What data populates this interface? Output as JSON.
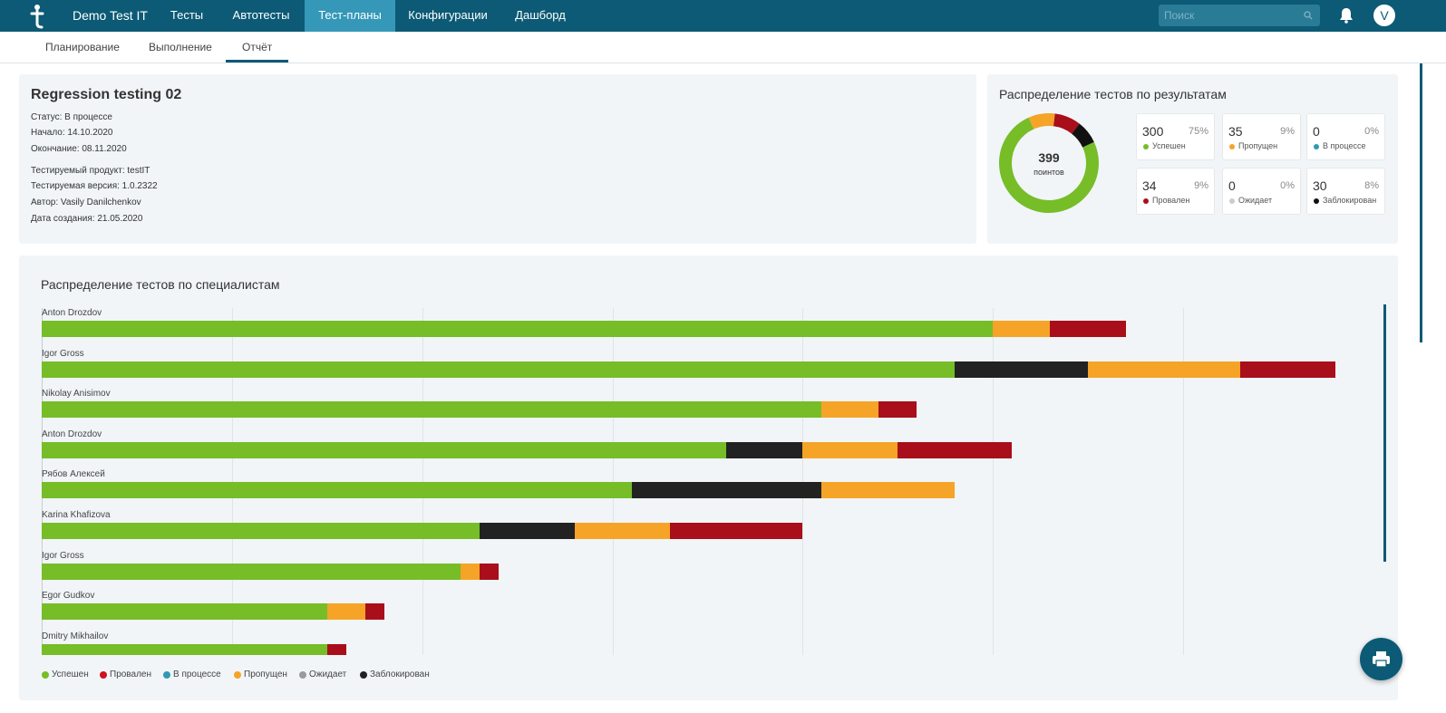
{
  "app": {
    "title": "Demo Test IT",
    "logo_icon": "testit-logo-icon"
  },
  "nav": {
    "tabs": [
      {
        "label": "Тесты",
        "active": false
      },
      {
        "label": "Автотесты",
        "active": false
      },
      {
        "label": "Тест-планы",
        "active": true
      },
      {
        "label": "Конфигурации",
        "active": false
      },
      {
        "label": "Дашборд",
        "active": false
      }
    ],
    "search_placeholder": "Поиск",
    "avatar_initial": "V"
  },
  "subnav": {
    "tabs": [
      {
        "label": "Планирование",
        "active": false
      },
      {
        "label": "Выполнение",
        "active": false
      },
      {
        "label": "Отчёт",
        "active": true
      }
    ]
  },
  "plan": {
    "title": "Regression testing 02",
    "status": "Статус: В процессе",
    "start": "Начало: 14.10.2020",
    "end": "Окончание: 08.11.2020",
    "product": "Тестируемый продукт: testIT",
    "version": "Тестируемая версия: 1.0.2322",
    "author": "Автор: Vasily Danilchenkov",
    "created": "Дата создания: 21.05.2020"
  },
  "distribution": {
    "title": "Распределение тестов по результатам",
    "total": "399",
    "total_unit": "поинтов",
    "stats": [
      {
        "count": "300",
        "pct": "75%",
        "label": "Успешен",
        "color": "#76bd28"
      },
      {
        "count": "35",
        "pct": "9%",
        "label": "Пропущен",
        "color": "#f5a428"
      },
      {
        "count": "0",
        "pct": "0%",
        "label": "В процессе",
        "color": "#3098b3"
      },
      {
        "count": "34",
        "pct": "9%",
        "label": "Провален",
        "color": "#a90e1b"
      },
      {
        "count": "0",
        "pct": "0%",
        "label": "Ожидает",
        "color": "#cccccc"
      },
      {
        "count": "30",
        "pct": "8%",
        "label": "Заблокирован",
        "color": "#111111"
      }
    ]
  },
  "chart_data": {
    "type": "bar",
    "orientation": "horizontal",
    "stacked": true,
    "title": "Распределение тестов по специалистам",
    "categories": [
      "Anton Drozdov",
      "Igor Gross",
      "Nikolay Anisimov",
      "Anton Drozdov",
      "Рябов Алексей",
      "Karina Khafizova",
      "Igor Gross",
      "Egor Gudkov",
      "Dmitry Mikhailov"
    ],
    "xlim": [
      0,
      35
    ],
    "grid": true,
    "series": [
      {
        "name": "Успешен",
        "color": "#76bd28",
        "values": [
          25,
          24,
          20.5,
          18,
          15.5,
          11.5,
          11,
          7.5,
          7.5
        ]
      },
      {
        "name": "Заблокирован",
        "color": "#222222",
        "values": [
          0,
          3.5,
          0,
          2,
          5,
          2.5,
          0,
          0,
          0
        ]
      },
      {
        "name": "Пропущен",
        "color": "#f5a428",
        "values": [
          1.5,
          4,
          1.5,
          2.5,
          3.5,
          2.5,
          0.5,
          1,
          0
        ]
      },
      {
        "name": "Провален",
        "color": "#a90e1b",
        "values": [
          2,
          2.5,
          1,
          3,
          0,
          3.5,
          0.5,
          0.5,
          0.5
        ]
      }
    ],
    "legend_position": "bottom-left"
  },
  "legend": [
    {
      "label": "Успешен",
      "color": "#76bd28"
    },
    {
      "label": "Провален",
      "color": "#d0101e"
    },
    {
      "label": "В процессе",
      "color": "#3098b3"
    },
    {
      "label": "Пропущен",
      "color": "#f5a428"
    },
    {
      "label": "Ожидает",
      "color": "#9a9a9a"
    },
    {
      "label": "Заблокирован",
      "color": "#222222"
    }
  ],
  "icons": {
    "search": "search-icon",
    "bell": "bell-icon",
    "print": "print-icon"
  }
}
